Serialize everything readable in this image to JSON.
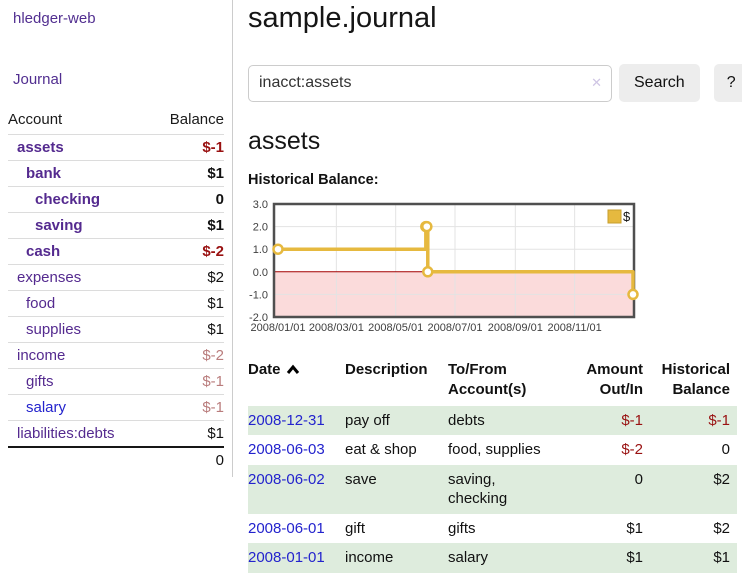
{
  "sidebar": {
    "brand": "hledger-web",
    "nav": {
      "journal_label": "Journal"
    },
    "accounts_table": {
      "headers": {
        "account": "Account",
        "balance": "Balance"
      },
      "rows": [
        {
          "name": "assets",
          "indent": 1,
          "emph": true,
          "link": "purple",
          "value": "$-1",
          "value_style": "negstrong"
        },
        {
          "name": "bank",
          "indent": 2,
          "emph": true,
          "link": "purple",
          "value": "$1",
          "value_style": "plain"
        },
        {
          "name": "checking",
          "indent": 3,
          "emph": true,
          "link": "purple",
          "value": "0",
          "value_style": "plain"
        },
        {
          "name": "saving",
          "indent": 3,
          "emph": true,
          "link": "purple",
          "value": "$1",
          "value_style": "plain"
        },
        {
          "name": "cash",
          "indent": 2,
          "emph": true,
          "link": "purple",
          "value": "$-2",
          "value_style": "negstrong"
        },
        {
          "name": "expenses",
          "indent": 1,
          "emph": false,
          "link": "purple",
          "value": "$2",
          "value_style": "plain"
        },
        {
          "name": "food",
          "indent": 2,
          "emph": false,
          "link": "purple",
          "value": "$1",
          "value_style": "plain"
        },
        {
          "name": "supplies",
          "indent": 2,
          "emph": false,
          "link": "purple",
          "value": "$1",
          "value_style": "plain"
        },
        {
          "name": "income",
          "indent": 1,
          "emph": false,
          "link": "purple",
          "value": "$-2",
          "value_style": "negsoft"
        },
        {
          "name": "gifts",
          "indent": 2,
          "emph": false,
          "link": "purple",
          "value": "$-1",
          "value_style": "negsoft"
        },
        {
          "name": "salary",
          "indent": 2,
          "emph": false,
          "link": "blue",
          "value": "$-1",
          "value_style": "negsoft"
        },
        {
          "name": "liabilities:debts",
          "indent": 1,
          "emph": false,
          "link": "purple",
          "value": "$1",
          "value_style": "plain"
        }
      ],
      "total": "0"
    }
  },
  "main": {
    "title": "sample.journal",
    "search": {
      "value": "inacct:assets",
      "clear_icon": "✕",
      "button_label": "Search",
      "help_label": "?"
    },
    "account_heading": "assets",
    "chart_heading": "Historical Balance:",
    "register": {
      "headers": {
        "date": "Date",
        "description": "Description",
        "tofrom": "To/From Account(s)",
        "amount": "Amount Out/In",
        "balance": "Historical Balance"
      },
      "rows": [
        {
          "date": "2008-12-31",
          "description": "pay off",
          "accounts": "debts",
          "amount": "$-1",
          "amount_neg": true,
          "balance": "$-1",
          "balance_neg": true
        },
        {
          "date": "2008-06-03",
          "description": "eat & shop",
          "accounts": "food, supplies",
          "amount": "$-2",
          "amount_neg": true,
          "balance": "0",
          "balance_neg": false
        },
        {
          "date": "2008-06-02",
          "description": "save",
          "accounts": "saving, checking",
          "amount": "0",
          "amount_neg": false,
          "balance": "$2",
          "balance_neg": false
        },
        {
          "date": "2008-06-01",
          "description": "gift",
          "accounts": "gifts",
          "amount": "$1",
          "amount_neg": false,
          "balance": "$2",
          "balance_neg": false
        },
        {
          "date": "2008-01-01",
          "description": "income",
          "accounts": "salary",
          "amount": "$1",
          "amount_neg": false,
          "balance": "$1",
          "balance_neg": false
        }
      ]
    }
  },
  "chart_data": {
    "type": "line",
    "title": "Historical Balance:",
    "step": true,
    "series": [
      {
        "name": "$",
        "color": "#e6b93f",
        "points": [
          {
            "date": "2008-01-01",
            "day": 1,
            "value": 1
          },
          {
            "date": "2008-06-01",
            "day": 153,
            "value": 2
          },
          {
            "date": "2008-06-02",
            "day": 154,
            "value": 2
          },
          {
            "date": "2008-06-03",
            "day": 155,
            "value": 0
          },
          {
            "date": "2008-12-31",
            "day": 366,
            "value": -1
          }
        ]
      }
    ],
    "ylim": [
      -2,
      3
    ],
    "yticks": [
      3.0,
      2.0,
      1.0,
      0.0,
      -1.0,
      -2.0
    ],
    "xticks": [
      {
        "day": 1,
        "label": "2008/01/01"
      },
      {
        "day": 61,
        "label": "2008/03/01"
      },
      {
        "day": 122,
        "label": "2008/05/01"
      },
      {
        "day": 183,
        "label": "2008/07/01"
      },
      {
        "day": 245,
        "label": "2008/09/01"
      },
      {
        "day": 306,
        "label": "2008/11/01"
      }
    ],
    "legend": {
      "label": "$",
      "position": "top-right"
    },
    "grid": true,
    "negative_fill": "#fbdbdb",
    "zero_line_color": "#a40000",
    "border_color": "#4f4f4f",
    "grid_color": "#e3e3e3"
  }
}
